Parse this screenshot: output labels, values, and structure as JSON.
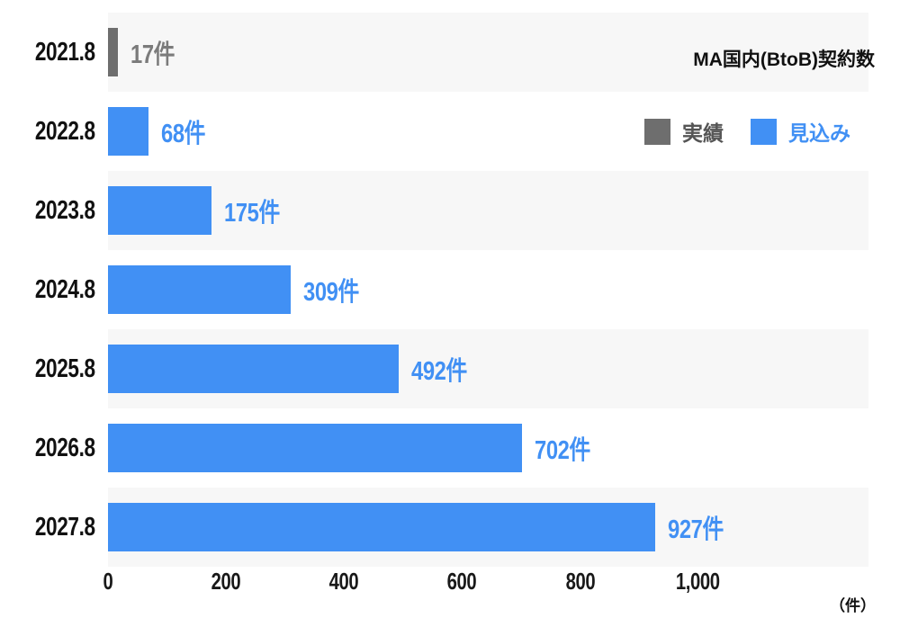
{
  "chart_data": {
    "type": "bar",
    "orientation": "horizontal",
    "title": "MA国内(BtoB)契約数",
    "categories": [
      "2021.8",
      "2022.8",
      "2023.8",
      "2024.8",
      "2025.8",
      "2026.8",
      "2027.8"
    ],
    "values": [
      17,
      68,
      175,
      309,
      492,
      702,
      927
    ],
    "value_labels": [
      "17件",
      "68件",
      "175件",
      "309件",
      "492件",
      "702件",
      "927件"
    ],
    "series_per_bar": [
      "実績",
      "見込み",
      "見込み",
      "見込み",
      "見込み",
      "見込み",
      "見込み"
    ],
    "legend": [
      {
        "name": "実績",
        "color": "#6e6e6e",
        "text_color": "#555555"
      },
      {
        "name": "見込み",
        "color": "#4190f4",
        "text_color": "#4190f4"
      }
    ],
    "legend_position": "top-right",
    "x_ticks": {
      "values": [
        0,
        200,
        400,
        600,
        800,
        1000
      ],
      "labels": [
        "0",
        "200",
        "400",
        "600",
        "800",
        "1,000"
      ]
    },
    "xlim": [
      0,
      1043
    ],
    "unit_label": "（件）",
    "grid": false,
    "row_stripe": true,
    "colors": {
      "bar_actual": "#6e6e6e",
      "bar_forecast": "#4190f4",
      "label_actual": "#7b7b7b",
      "label_forecast": "#4190f4",
      "row_alt_bg": "#f7f7f7",
      "category_label": "#111111",
      "tick_label": "#191919",
      "title": "#111111"
    }
  }
}
